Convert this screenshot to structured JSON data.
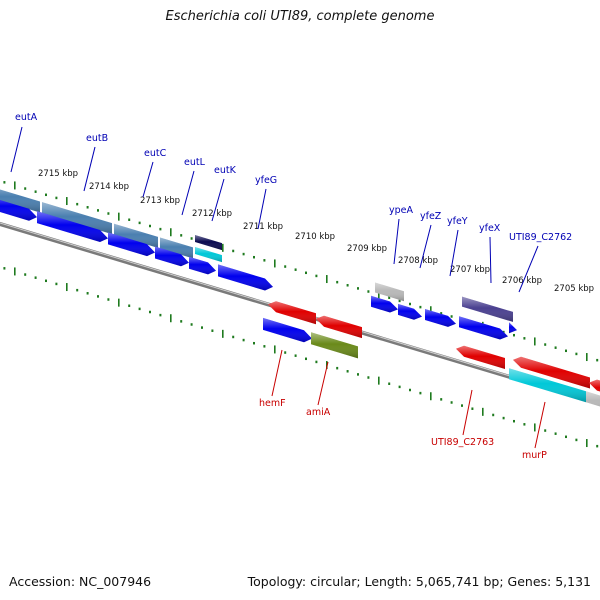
{
  "title": "Escherichia coli UTI89, complete genome",
  "footer": {
    "accession": "Accession: NC_007946",
    "summary": "Topology: circular; Length: 5,065,741 bp; Genes: 5,131"
  },
  "colors": {
    "background": "#ffffff",
    "backbone": "#7a7a7a",
    "tick": "#1e7a1e",
    "forward_label": "#0000b4",
    "reverse_label": "#c80000",
    "cds_blue": "#0000ee",
    "cds_red": "#e00000",
    "gray_feature": "#b8b8b8",
    "steelblue": "#4a7fb0",
    "navy": "#0a0a50",
    "cyan": "#00c8d8",
    "olive": "#6a8a1a",
    "slate": "#4a4090"
  },
  "ruler_labels": [
    "2715 kbp",
    "2714 kbp",
    "2713 kbp",
    "2712 kbp",
    "2711 kbp",
    "2710 kbp",
    "2709 kbp",
    "2708 kbp",
    "2707 kbp",
    "2706 kbp",
    "2705 kbp"
  ],
  "gene_labels_forward": [
    "eutA",
    "eutB",
    "eutC",
    "eutL",
    "eutK",
    "yfeG",
    "ypeA",
    "yfeZ",
    "yfeY",
    "yfeX",
    "UTI89_C2762"
  ],
  "gene_labels_reverse": [
    "hemF",
    "amiA",
    "UTI89_C2763",
    "murP"
  ]
}
